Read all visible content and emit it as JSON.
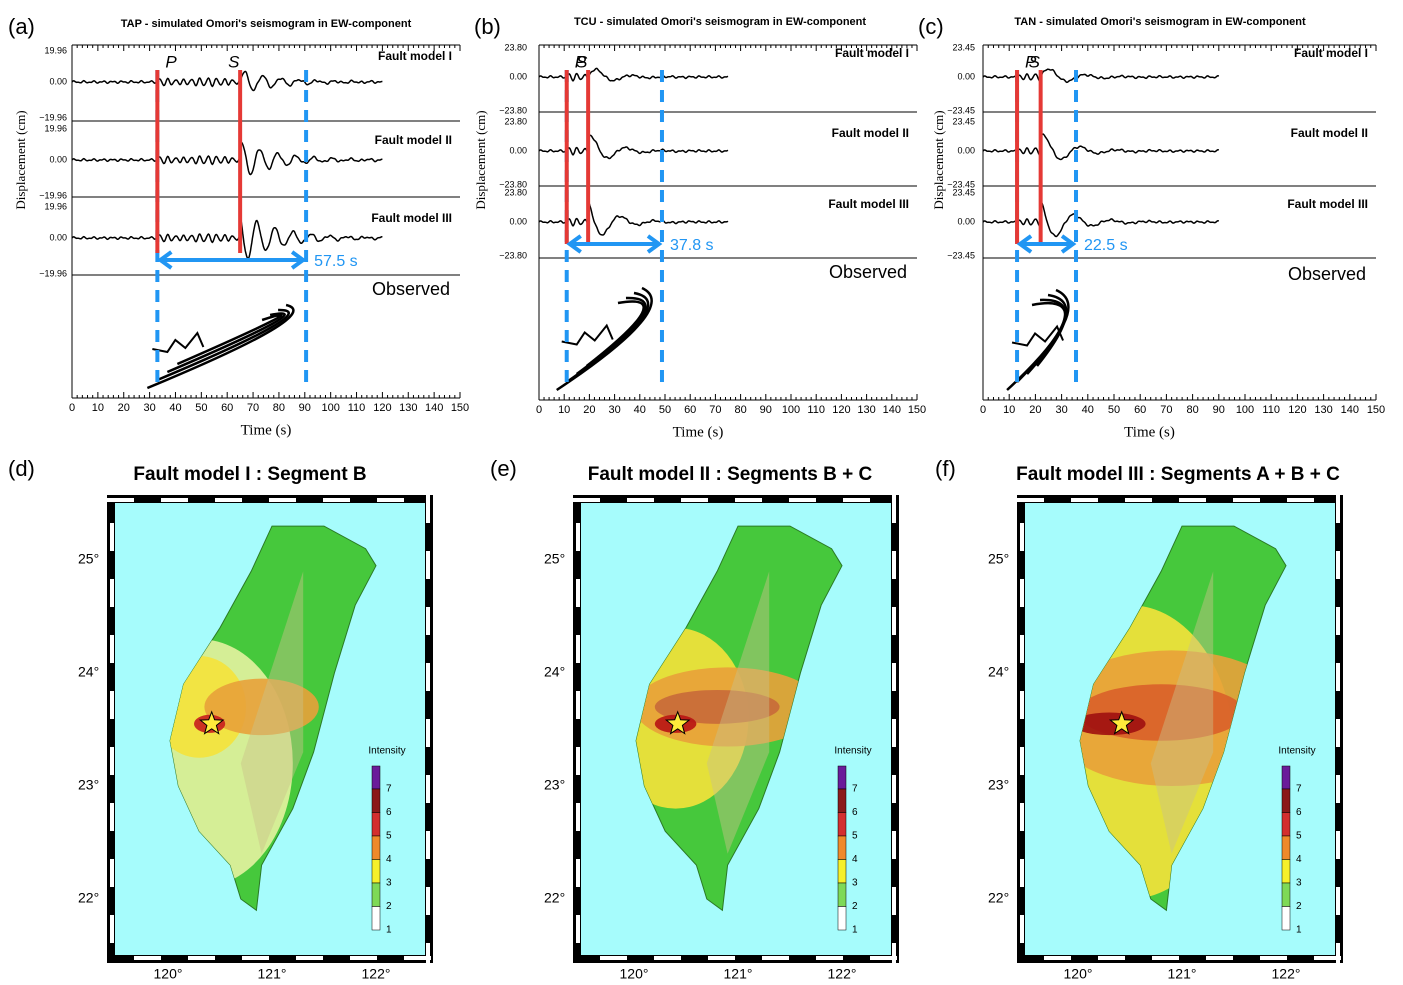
{
  "seismograms": [
    {
      "label": "(a)",
      "title": "TAP - simulated Omori's seismogram in EW-component",
      "y_label": "Displacement (cm)",
      "x_label": "Time (s)",
      "p": "P",
      "s": "S",
      "interval": "57.5 s",
      "observed": "Observed",
      "models": [
        {
          "name": "Fault model I",
          "top": "19.96",
          "zero": "0.00",
          "bottom": "−19.96"
        },
        {
          "name": "Fault model II",
          "top": "19.96",
          "zero": "0.00",
          "bottom": "−19.96"
        },
        {
          "name": "Fault model III",
          "top": "19.96",
          "zero": "0.00",
          "bottom": "−19.96"
        }
      ],
      "xticks": [
        0,
        10,
        20,
        30,
        40,
        50,
        60,
        70,
        80,
        90,
        100,
        110,
        120,
        130,
        140,
        150
      ]
    },
    {
      "label": "(b)",
      "title": "TCU - simulated Omori's seismogram in EW-component",
      "y_label": "Displacement (cm)",
      "x_label": "Time (s)",
      "p": "P",
      "s": "S",
      "interval": "37.8 s",
      "observed": "Observed",
      "models": [
        {
          "name": "Fault model I",
          "top": "23.80",
          "zero": "0.00",
          "bottom": "−23.80"
        },
        {
          "name": "Fault model II",
          "top": "23.80",
          "zero": "0.00",
          "bottom": "−23.80"
        },
        {
          "name": "Fault model III",
          "top": "23.80",
          "zero": "0.00",
          "bottom": "−23.80"
        }
      ],
      "xticks": [
        0,
        10,
        20,
        30,
        40,
        50,
        60,
        70,
        80,
        90,
        100,
        110,
        120,
        130,
        140,
        150
      ]
    },
    {
      "label": "(c)",
      "title": "TAN - simulated Omori's seismogram in EW-component",
      "y_label": "Displacement (cm)",
      "x_label": "Time (s)",
      "p": "P",
      "s": "S",
      "interval": "22.5 s",
      "observed": "Observed",
      "models": [
        {
          "name": "Fault model I",
          "top": "23.45",
          "zero": "0.00",
          "bottom": "−23.45"
        },
        {
          "name": "Fault model II",
          "top": "23.45",
          "zero": "0.00",
          "bottom": "−23.45"
        },
        {
          "name": "Fault model III",
          "top": "23.45",
          "zero": "0.00",
          "bottom": "−23.45"
        }
      ],
      "xticks": [
        0,
        10,
        20,
        30,
        40,
        50,
        60,
        70,
        80,
        90,
        100,
        110,
        120,
        130,
        140,
        150
      ]
    }
  ],
  "maps": [
    {
      "label": "(d)",
      "title": "Fault model I : Segment B",
      "lat_ticks": [
        "25°",
        "24°",
        "23°",
        "22°"
      ],
      "lon_ticks": [
        "120°",
        "121°",
        "122°"
      ],
      "legend_title": "Intensity",
      "legend_ticks": [
        "7",
        "6",
        "5",
        "4",
        "3",
        "2",
        "1"
      ]
    },
    {
      "label": "(e)",
      "title": "Fault model II : Segments B + C",
      "lat_ticks": [
        "25°",
        "24°",
        "23°",
        "22°"
      ],
      "lon_ticks": [
        "120°",
        "121°",
        "122°"
      ],
      "legend_title": "Intensity",
      "legend_ticks": [
        "7",
        "6",
        "5",
        "4",
        "3",
        "2",
        "1"
      ]
    },
    {
      "label": "(f)",
      "title": "Fault model III : Segments A + B + C",
      "lat_ticks": [
        "25°",
        "24°",
        "23°",
        "22°"
      ],
      "lon_ticks": [
        "120°",
        "121°",
        "122°"
      ],
      "legend_title": "Intensity",
      "legend_ticks": [
        "7",
        "6",
        "5",
        "4",
        "3",
        "2",
        "1"
      ]
    }
  ]
}
